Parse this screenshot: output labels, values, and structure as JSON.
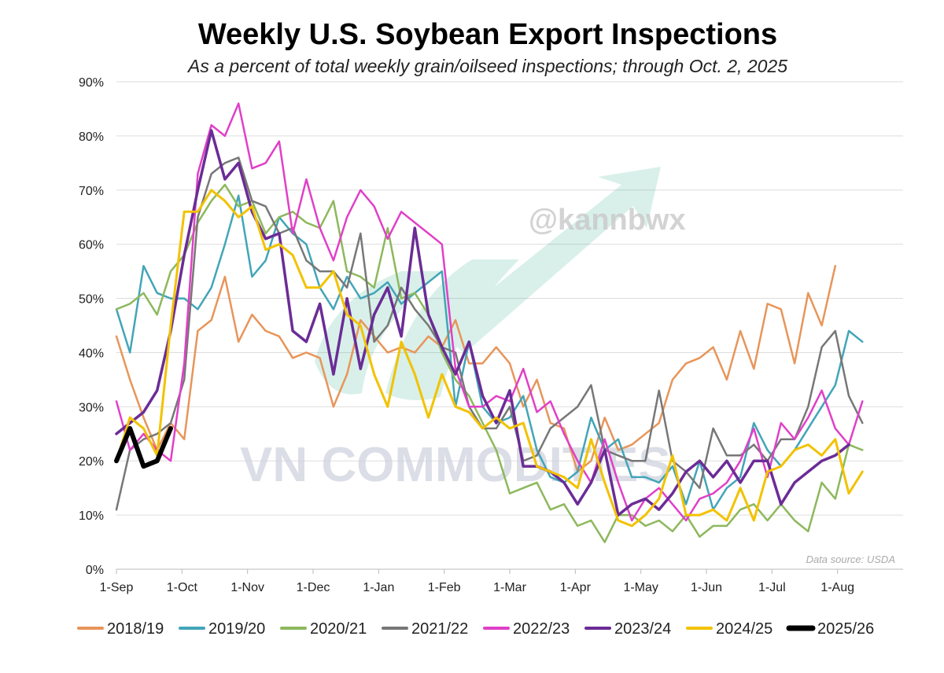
{
  "chart_data": {
    "type": "line",
    "title": "Weekly U.S. Soybean Export Inspections",
    "subtitle": "As a percent of total weekly grain/oilseed inspections; through Oct. 2, 2025",
    "source": "Data source: USDA",
    "watermarks": [
      "@kannbwx",
      "VN COMMODITIES"
    ],
    "x_tick_labels": [
      "1-Sep",
      "1-Oct",
      "1-Nov",
      "1-Dec",
      "1-Jan",
      "1-Feb",
      "1-Mar",
      "1-Apr",
      "1-May",
      "1-Jun",
      "1-Jul",
      "1-Aug"
    ],
    "y_tick_labels": [
      "0%",
      "10%",
      "20%",
      "30%",
      "40%",
      "50%",
      "60%",
      "70%",
      "80%",
      "90%"
    ],
    "ylim": [
      0,
      90
    ],
    "grid": true,
    "legend_position": "bottom",
    "series": [
      {
        "name": "2018/19",
        "color": "#E8955A",
        "width": 2.5,
        "values": [
          43,
          35,
          28,
          22,
          27,
          24,
          44,
          46,
          54,
          42,
          47,
          44,
          43,
          39,
          40,
          39,
          30,
          36,
          46,
          43,
          40,
          41,
          40,
          43,
          41,
          46,
          38,
          38,
          41,
          38,
          30,
          35,
          27,
          26,
          18,
          20,
          28,
          22,
          23,
          25,
          27,
          35,
          38,
          39,
          41,
          35,
          44,
          37,
          49,
          48,
          38,
          51,
          45,
          56
        ]
      },
      {
        "name": "2019/20",
        "color": "#42A5B8",
        "width": 2.5,
        "values": [
          48,
          40,
          56,
          51,
          50,
          50,
          48,
          52,
          60,
          69,
          54,
          57,
          65,
          62,
          60,
          52,
          48,
          54,
          50,
          51,
          53,
          49,
          51,
          53,
          55,
          30,
          42,
          30,
          27,
          28,
          32,
          22,
          17,
          16,
          18,
          28,
          22,
          24,
          17,
          17,
          16,
          19,
          12,
          20,
          11,
          15,
          17,
          27,
          22,
          19,
          22,
          26,
          30,
          34,
          44,
          42
        ]
      },
      {
        "name": "2020/21",
        "color": "#8DB85C",
        "width": 2.5,
        "values": [
          48,
          49,
          51,
          47,
          55,
          58,
          64,
          68,
          71,
          67,
          68,
          62,
          65,
          66,
          64,
          63,
          68,
          55,
          54,
          52,
          63,
          50,
          51,
          47,
          40,
          35,
          32,
          27,
          22,
          14,
          15,
          16,
          11,
          12,
          8,
          9,
          5,
          10,
          10,
          8,
          9,
          7,
          10,
          6,
          8,
          8,
          11,
          12,
          9,
          12,
          9,
          7,
          16,
          13,
          23,
          22
        ]
      },
      {
        "name": "2021/22",
        "color": "#777777",
        "width": 2.5,
        "values": [
          11,
          22,
          24,
          25,
          27,
          35,
          65,
          73,
          75,
          76,
          68,
          67,
          62,
          63,
          57,
          55,
          55,
          52,
          62,
          42,
          45,
          52,
          48,
          45,
          41,
          40,
          30,
          26,
          26,
          30,
          20,
          21,
          26,
          28,
          30,
          34,
          22,
          21,
          20,
          20,
          33,
          20,
          18,
          15,
          26,
          21,
          21,
          23,
          20,
          24,
          24,
          30,
          41,
          44,
          32,
          27
        ]
      },
      {
        "name": "2022/23",
        "color": "#E040C8",
        "width": 2.5,
        "values": [
          31,
          22,
          25,
          22,
          20,
          38,
          73,
          82,
          80,
          86,
          74,
          75,
          79,
          62,
          72,
          63,
          57,
          65,
          70,
          67,
          61,
          66,
          64,
          62,
          60,
          37,
          30,
          30,
          32,
          31,
          37,
          29,
          31,
          25,
          20,
          16,
          24,
          16,
          9,
          13,
          15,
          12,
          9,
          13,
          14,
          16,
          20,
          26,
          17,
          27,
          24,
          28,
          33,
          26,
          23,
          31
        ]
      },
      {
        "name": "2023/24",
        "color": "#6B2C96",
        "width": 3.5,
        "values": [
          25,
          27,
          29,
          33,
          44,
          58,
          70,
          81,
          72,
          75,
          66,
          61,
          62,
          44,
          42,
          49,
          36,
          50,
          37,
          47,
          52,
          43,
          63,
          47,
          41,
          36,
          42,
          32,
          27,
          33,
          19,
          19,
          18,
          16,
          12,
          16,
          22,
          10,
          12,
          13,
          11,
          14,
          18,
          20,
          17,
          20,
          16,
          20,
          20,
          12,
          16,
          18,
          20,
          21,
          23
        ]
      },
      {
        "name": "2024/25",
        "color": "#F2C200",
        "width": 3,
        "values": [
          20,
          28,
          26,
          21,
          45,
          66,
          66,
          70,
          68,
          65,
          67,
          59,
          60,
          58,
          52,
          52,
          55,
          47,
          45,
          36,
          30,
          42,
          36,
          28,
          36,
          30,
          29,
          26,
          28,
          26,
          27,
          19,
          18,
          17,
          15,
          24,
          16,
          9,
          8,
          10,
          13,
          21,
          10,
          10,
          11,
          9,
          15,
          9,
          18,
          19,
          22,
          23,
          21,
          24,
          14,
          18
        ]
      },
      {
        "name": "2025/26",
        "color": "#000000",
        "width": 6,
        "values": [
          20,
          26,
          19,
          20,
          26
        ]
      }
    ]
  }
}
